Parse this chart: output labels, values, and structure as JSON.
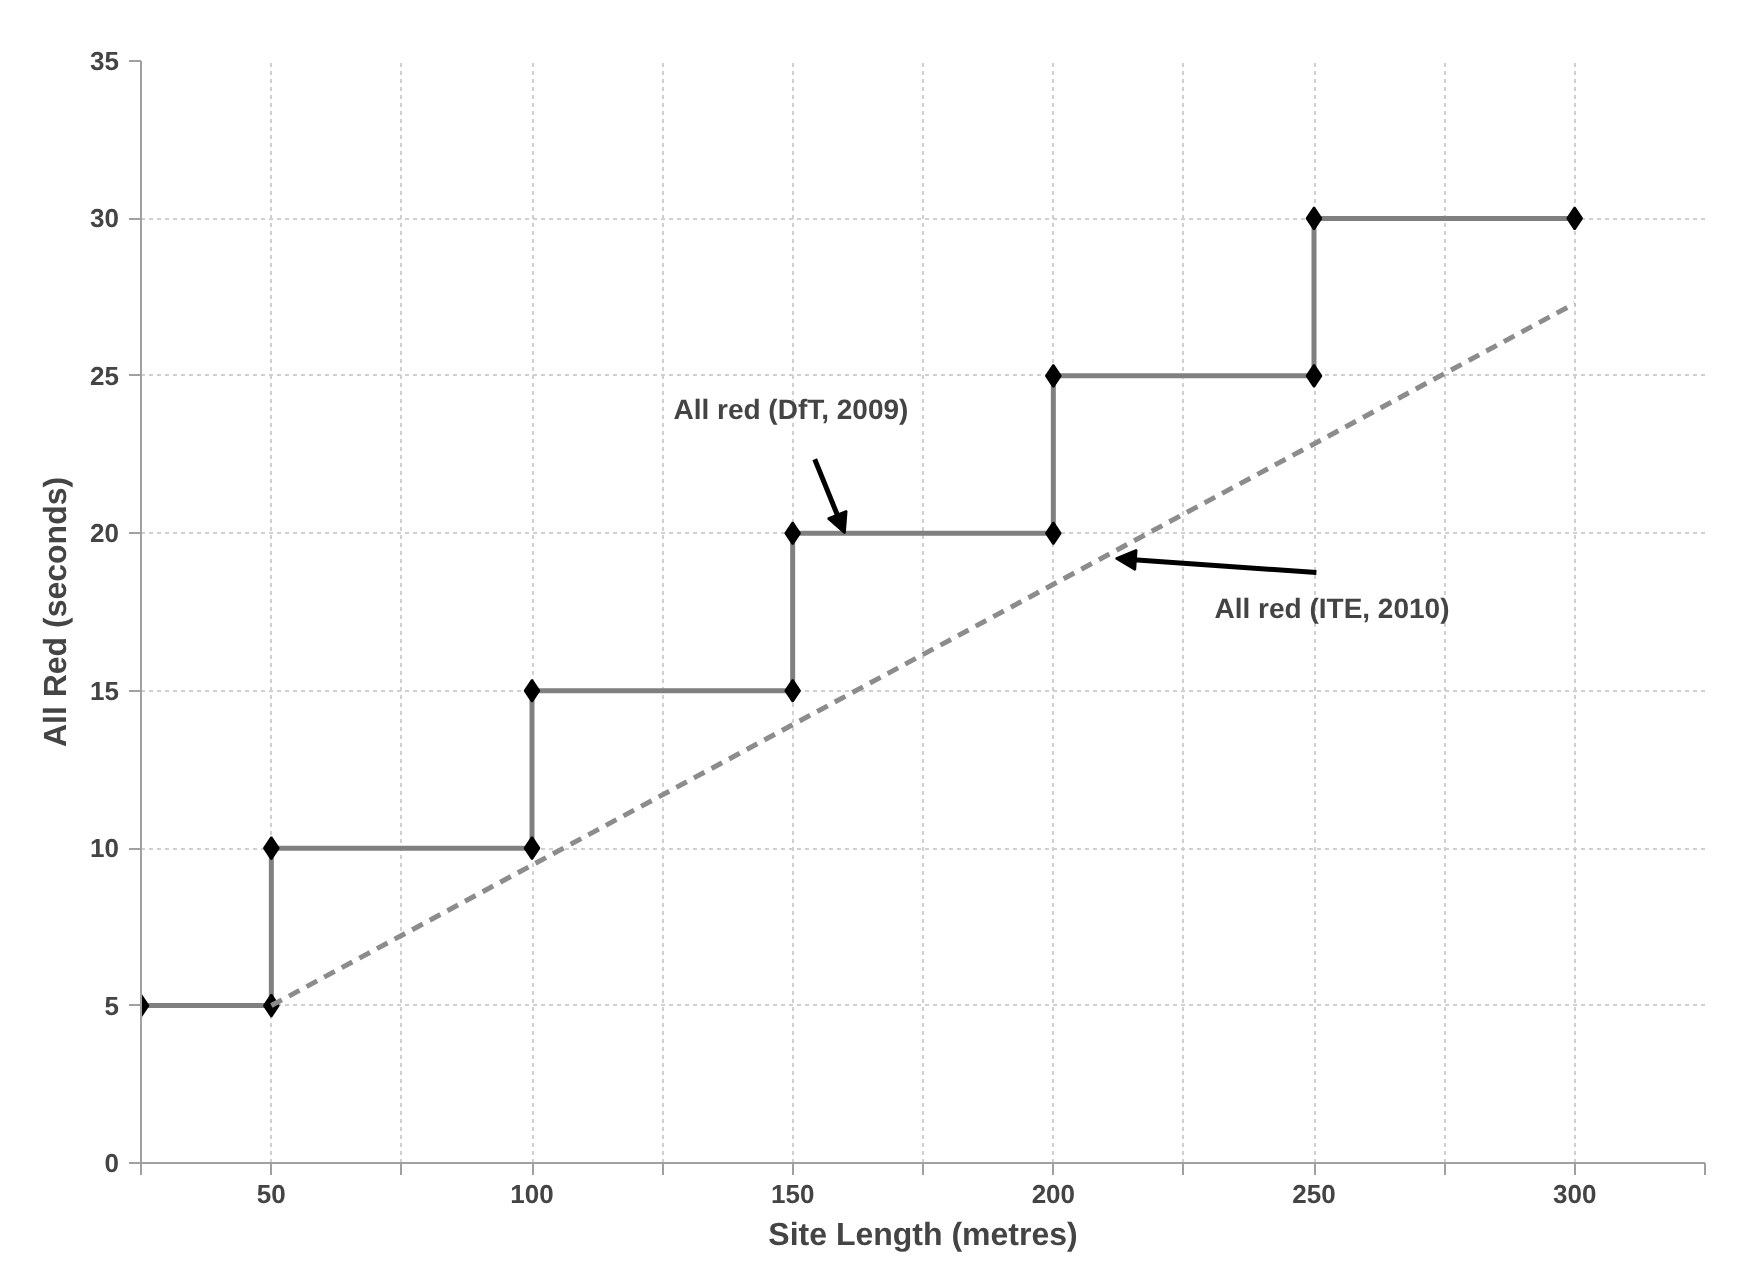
{
  "chart_data": {
    "type": "line",
    "xlabel": "Site Length (metres)",
    "ylabel": "All Red (seconds)",
    "xlim": [
      25,
      325
    ],
    "ylim": [
      0,
      35
    ],
    "xticks": [
      {
        "value": 25,
        "label": null
      },
      50,
      {
        "value": 75,
        "label": null
      },
      100,
      {
        "value": 125,
        "label": null
      },
      150,
      {
        "value": 175,
        "label": null
      },
      200,
      {
        "value": 225,
        "label": null
      },
      250,
      {
        "value": 275,
        "label": null
      },
      300,
      {
        "value": 325,
        "label": null
      }
    ],
    "yticks": [
      0,
      5,
      10,
      15,
      20,
      25,
      30,
      35
    ],
    "grid": true,
    "series": [
      {
        "color": "#808080",
        "marker": "diamond",
        "line_style": "solid",
        "x": [
          25,
          50,
          50,
          100,
          100,
          150,
          150,
          200,
          200,
          250,
          250,
          300
        ],
        "values": [
          5,
          5,
          10,
          10,
          15,
          15,
          20,
          20,
          25,
          25,
          30,
          30
        ]
      },
      {
        "color": "#8c8c8c",
        "marker": "none",
        "line_style": "dashed",
        "x": [
          50,
          300
        ],
        "values": [
          5,
          27.3
        ]
      }
    ],
    "annotations": [
      {
        "text": "All red  (DfT, 2009)",
        "x": 160,
        "y": 20
      },
      {
        "text": "All red  (ITE, 2010)",
        "x": 212,
        "y": 19.2
      }
    ]
  }
}
